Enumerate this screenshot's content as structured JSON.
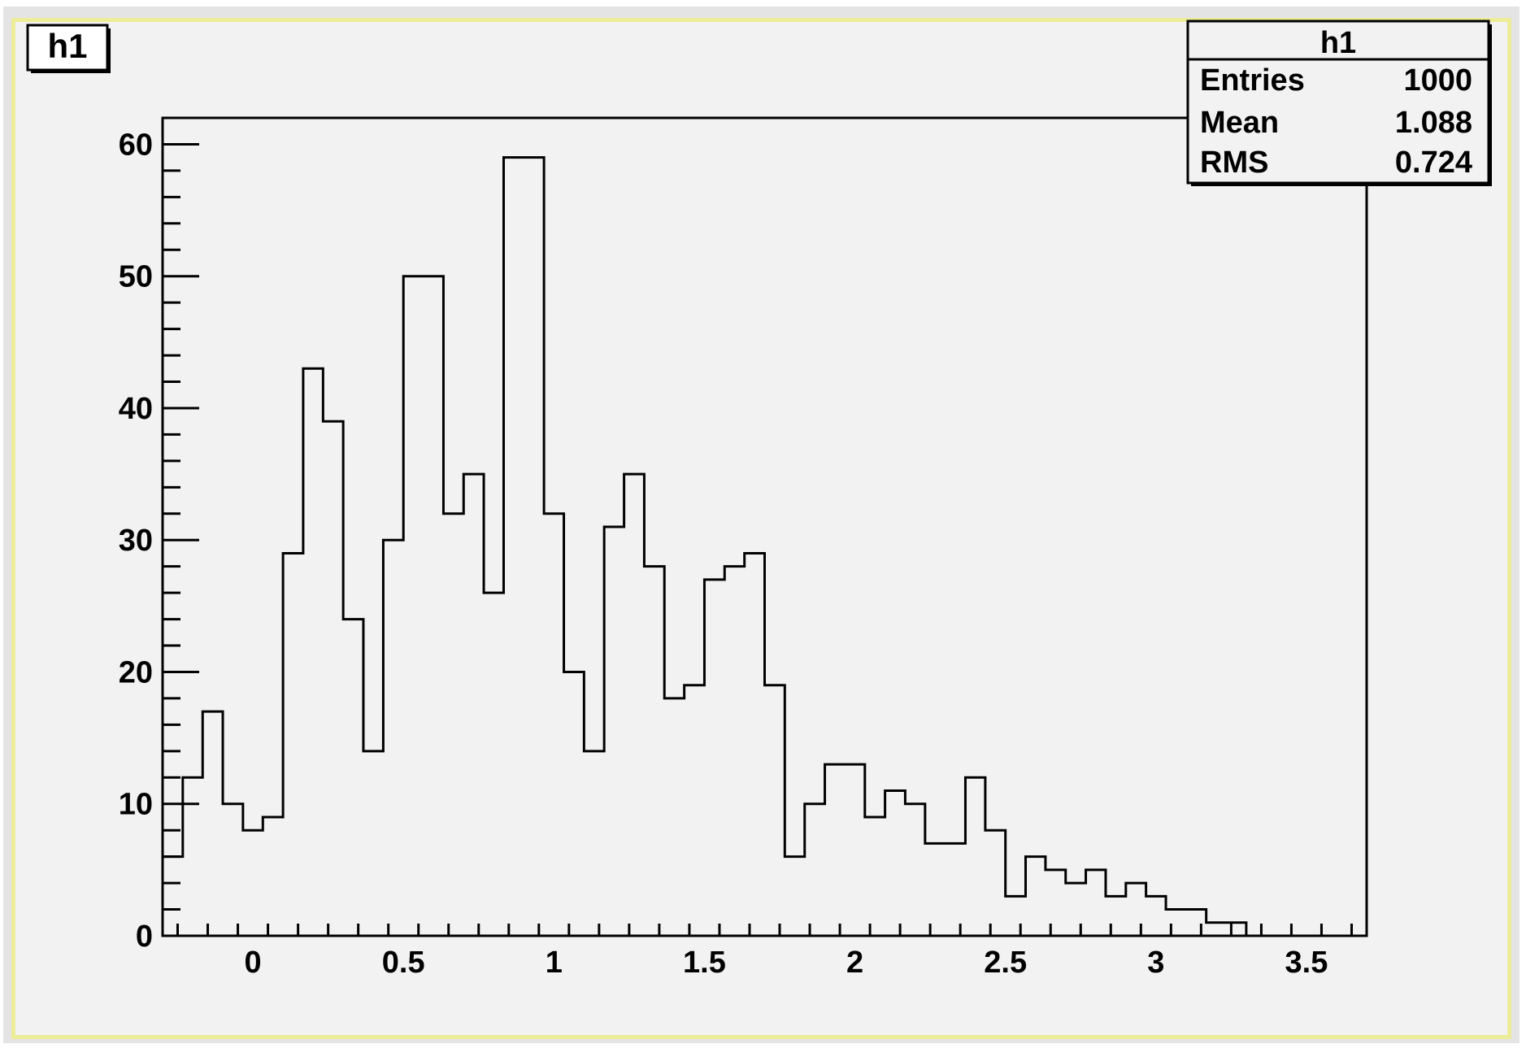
{
  "chart_data": {
    "type": "bar",
    "subtype": "histogram",
    "title": "h1",
    "xlabel": "",
    "ylabel": "",
    "xlim": [
      -0.3,
      3.7
    ],
    "ylim": [
      0,
      62
    ],
    "bin_edges": [
      -0.3,
      -0.233,
      -0.167,
      -0.1,
      -0.033,
      0.033,
      0.1,
      0.167,
      0.233,
      0.3,
      0.367,
      0.433,
      0.5,
      0.567,
      0.633,
      0.7,
      0.767,
      0.833,
      0.9,
      0.967,
      1.033,
      1.1,
      1.167,
      1.233,
      1.3,
      1.367,
      1.433,
      1.5,
      1.567,
      1.633,
      1.7,
      1.767,
      1.833,
      1.9,
      1.967,
      2.033,
      2.1,
      2.167,
      2.233,
      2.3,
      2.367,
      2.433,
      2.5,
      2.567,
      2.633,
      2.7,
      2.767,
      2.833,
      2.9,
      2.967,
      3.033,
      3.1,
      3.167,
      3.233,
      3.3,
      3.367,
      3.433,
      3.5,
      3.567,
      3.633,
      3.7
    ],
    "values": [
      6,
      12,
      17,
      10,
      8,
      9,
      29,
      43,
      39,
      24,
      14,
      30,
      50,
      50,
      32,
      35,
      26,
      59,
      59,
      32,
      20,
      14,
      31,
      35,
      28,
      18,
      19,
      27,
      28,
      29,
      19,
      6,
      10,
      13,
      13,
      9,
      11,
      10,
      7,
      7,
      12,
      8,
      3,
      6,
      5,
      4,
      5,
      3,
      4,
      3,
      2,
      2,
      1,
      1,
      0,
      0,
      0,
      0,
      0,
      0
    ],
    "x_ticks": [
      "0",
      "0.5",
      "1",
      "1.5",
      "2",
      "2.5",
      "3",
      "3.5"
    ],
    "x_tick_values": [
      0,
      0.5,
      1,
      1.5,
      2,
      2.5,
      3,
      3.5
    ],
    "y_ticks": [
      "0",
      "10",
      "20",
      "30",
      "40",
      "50",
      "60"
    ],
    "y_tick_values": [
      0,
      10,
      20,
      30,
      40,
      50,
      60
    ],
    "legend": "top-right stats box",
    "grid": false
  },
  "title_box": {
    "label": "h1"
  },
  "stats_box": {
    "title": "h1",
    "rows": [
      {
        "label": "Entries",
        "value": "1000"
      },
      {
        "label": "Mean",
        "value": "1.088"
      },
      {
        "label": "RMS",
        "value": "0.724"
      }
    ]
  },
  "colors": {
    "line": "#000000",
    "pad_background": "#f2f2f2",
    "pad_border": "#ecec99"
  }
}
